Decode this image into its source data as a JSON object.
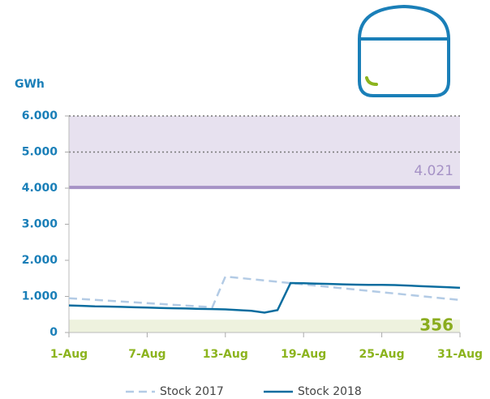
{
  "chart_data": {
    "type": "line",
    "y_axis_label": "GWh",
    "categories": [
      "1-Aug",
      null,
      null,
      null,
      null,
      null,
      "7-Aug",
      null,
      null,
      null,
      null,
      null,
      "13-Aug",
      null,
      null,
      null,
      null,
      null,
      "19-Aug",
      null,
      null,
      null,
      null,
      null,
      "25-Aug",
      null,
      null,
      null,
      null,
      null,
      "31-Aug"
    ],
    "series": [
      {
        "name": "Stock 2017",
        "color": "#b3cbe5",
        "dashed": true,
        "values": [
          950,
          927,
          905,
          882,
          859,
          836,
          814,
          791,
          768,
          745,
          723,
          700,
          1550,
          1514,
          1478,
          1442,
          1406,
          1369,
          1333,
          1297,
          1261,
          1225,
          1189,
          1153,
          1117,
          1081,
          1044,
          1008,
          972,
          936,
          900
        ]
      },
      {
        "name": "Stock 2018",
        "color": "#0b6d9f",
        "dashed": false,
        "values": [
          750,
          740,
          725,
          720,
          710,
          700,
          690,
          680,
          670,
          665,
          655,
          650,
          640,
          620,
          600,
          550,
          620,
          1370,
          1365,
          1355,
          1345,
          1335,
          1325,
          1320,
          1320,
          1315,
          1300,
          1285,
          1270,
          1255,
          1240
        ]
      }
    ],
    "ylim": [
      0,
      6000
    ],
    "yticks": [
      0,
      {
        "value": 1000,
        "label": "1.000"
      },
      {
        "value": 2000,
        "label": "2.000"
      },
      {
        "value": 3000,
        "label": "3.000"
      },
      {
        "value": 4000,
        "label": "4.000"
      },
      {
        "value": 5000,
        "label": "5.000"
      },
      {
        "value": 6000,
        "label": "6.000"
      }
    ],
    "upper_band": {
      "value": 4021,
      "label": "4.021",
      "color": "#e7e1ef",
      "line_color": "#a692c6"
    },
    "lower_band": {
      "value": 356,
      "label": "356",
      "color": "#eef2de",
      "label_color": "#8aac1e"
    }
  }
}
